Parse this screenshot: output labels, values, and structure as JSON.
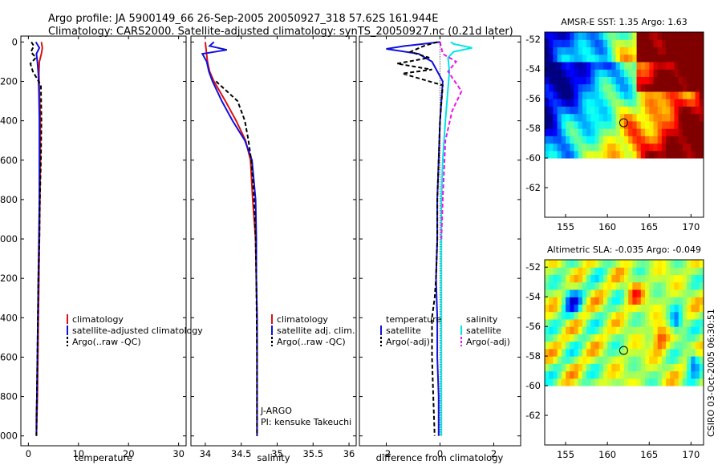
{
  "figure": {
    "title_line1": "Argo profile: JA 5900149_66 26-Sep-2005 20050927_318 57.62S 161.944E",
    "title_line2": "Climatology: CARS2000. Satellite-adjusted climatology: synTS_20050927.nc (0.21d later)",
    "side_stamp": "CSIRO 03-Oct-2005 06:30:51",
    "platform_note": "J-ARGO",
    "pi_note": "PI: kensuke Takeuchi"
  },
  "chart_data": [
    {
      "type": "line",
      "id": "temperature",
      "xlabel": "temperature",
      "xlim": [
        -1.5,
        31.5
      ],
      "ylim": [
        2050,
        -30
      ],
      "y_reversed": true,
      "xticks": [
        0,
        10,
        20,
        30
      ],
      "yticks": [
        0,
        200,
        400,
        600,
        800,
        1000,
        1200,
        1400,
        1600,
        1800,
        2000
      ],
      "legend": {
        "position": "lower-right",
        "entries": [
          {
            "label": "climatology",
            "color": "#dd1111"
          },
          {
            "label": "satellite-adjusted climatology",
            "color": "#1010dd"
          },
          {
            "label": "Argo(..raw -QC)",
            "color": "#000000"
          }
        ]
      },
      "series": [
        {
          "name": "climatology",
          "color": "#dd1111",
          "style": "solid",
          "x": [
            2.6,
            2.8,
            2.6,
            2.2,
            2.1,
            2.2,
            2.4,
            2.4,
            2.3,
            2.2,
            2.1,
            2.0,
            1.9,
            1.8,
            1.7,
            1.6
          ],
          "y": [
            0,
            30,
            60,
            100,
            160,
            250,
            400,
            600,
            800,
            1000,
            1200,
            1400,
            1600,
            1800,
            1900,
            2000
          ]
        },
        {
          "name": "satellite-adjusted climatology",
          "color": "#1010dd",
          "style": "solid",
          "x": [
            1.5,
            2.2,
            1.6,
            1.8,
            2.0,
            2.1,
            2.2,
            2.2,
            2.2,
            2.1,
            2.0,
            1.9,
            1.8,
            1.7,
            1.6,
            1.6
          ],
          "y": [
            0,
            30,
            60,
            100,
            160,
            250,
            400,
            600,
            800,
            1000,
            1200,
            1400,
            1600,
            1800,
            1900,
            2000
          ]
        },
        {
          "name": "Argo(..raw -QC)",
          "color": "#000000",
          "style": "dashed",
          "x": [
            0.6,
            1.1,
            0.5,
            1.5,
            0.4,
            0.9,
            2.5,
            2.6,
            2.5,
            2.3,
            2.2,
            2.0,
            1.9,
            1.8,
            1.7,
            1.6
          ],
          "y": [
            0,
            20,
            50,
            80,
            110,
            150,
            220,
            400,
            600,
            800,
            1000,
            1200,
            1400,
            1600,
            1800,
            2000
          ]
        }
      ]
    },
    {
      "type": "line",
      "id": "salinity",
      "xlabel": "salinity",
      "xlim": [
        33.8,
        36.1
      ],
      "ylim": [
        2050,
        -30
      ],
      "y_reversed": true,
      "xticks": [
        34,
        34.5,
        35,
        35.5,
        36
      ],
      "legend": {
        "position": "lower-right",
        "entries": [
          {
            "label": "climatology",
            "color": "#dd1111"
          },
          {
            "label": "satellite adj. clim.",
            "color": "#1010dd"
          },
          {
            "label": "Argo(..raw -QC)",
            "color": "#000000"
          }
        ]
      },
      "series": [
        {
          "name": "climatology",
          "color": "#dd1111",
          "style": "solid",
          "x": [
            34.0,
            34.03,
            34.06,
            34.12,
            34.28,
            34.43,
            34.56,
            34.63,
            34.66,
            34.7,
            34.71,
            34.72,
            34.72,
            34.72,
            34.72
          ],
          "y": [
            0,
            100,
            150,
            200,
            300,
            400,
            500,
            600,
            800,
            1000,
            1200,
            1400,
            1600,
            1800,
            2000
          ]
        },
        {
          "name": "satellite adj. clim.",
          "color": "#1010dd",
          "style": "solid",
          "x": [
            34.12,
            34.06,
            34.3,
            33.96,
            34.02,
            34.05,
            34.1,
            34.23,
            34.38,
            34.55,
            34.65,
            34.7,
            34.71,
            34.71,
            34.72,
            34.72,
            34.72
          ],
          "y": [
            0,
            20,
            40,
            60,
            100,
            150,
            200,
            300,
            400,
            500,
            600,
            800,
            1000,
            1200,
            1400,
            1800,
            2000
          ]
        },
        {
          "name": "Argo(..raw -QC)",
          "color": "#000000",
          "style": "dashed",
          "x": [
            34.15,
            34.3,
            34.45,
            34.55,
            34.6,
            34.64,
            34.68,
            34.7,
            34.71,
            34.72,
            34.72
          ],
          "y": [
            200,
            250,
            300,
            400,
            500,
            600,
            800,
            1000,
            1200,
            1600,
            2000
          ]
        }
      ]
    },
    {
      "type": "line",
      "id": "difference",
      "xlabel": "difference from climatology",
      "xlim": [
        -3,
        3
      ],
      "ylim": [
        2050,
        -30
      ],
      "y_reversed": true,
      "xticks": [
        -2,
        0,
        2
      ],
      "legend": {
        "position": "lower-center",
        "entries": [
          {
            "label": "temperature",
            "color": null,
            "group": "header"
          },
          {
            "label": "satellite",
            "color": "#1010dd"
          },
          {
            "label": "Argo(-adj)",
            "color": "#000000"
          },
          {
            "label": "salinity",
            "color": null,
            "group": "header"
          },
          {
            "label": "satellite",
            "color": "#00e5e5"
          },
          {
            "label": "Argo(-adj)",
            "color": "#ee11ee"
          }
        ]
      },
      "series": [
        {
          "name": "temperature satellite",
          "color": "#1010dd",
          "style": "solid",
          "x": [
            0,
            -1.3,
            -2.0,
            -0.8,
            -0.3,
            0.1,
            0.0,
            -0.05,
            -0.1,
            -0.1,
            -0.15,
            -0.1,
            -0.1,
            -0.05,
            -0.05
          ],
          "y": [
            0,
            20,
            35,
            60,
            100,
            200,
            400,
            600,
            800,
            1000,
            1200,
            1400,
            1600,
            1800,
            2000
          ]
        },
        {
          "name": "temperature Argo(-adj)",
          "color": "#000000",
          "style": "dashed",
          "x": [
            -0.1,
            -0.6,
            -1.1,
            -0.4,
            -1.6,
            -0.3,
            -1.4,
            0.1,
            0.0,
            -0.05,
            -0.1,
            -0.1,
            -0.15,
            -0.2,
            -0.3,
            -0.3,
            -0.25,
            -0.2
          ],
          "y": [
            0,
            20,
            50,
            80,
            110,
            140,
            160,
            220,
            400,
            600,
            800,
            1000,
            1200,
            1300,
            1400,
            1600,
            1800,
            2000
          ]
        },
        {
          "name": "salinity satellite",
          "color": "#00e5e5",
          "style": "solid",
          "x": [
            0.4,
            0.5,
            1.2,
            0.5,
            0.3,
            0.35,
            0.2,
            0.1,
            0.05,
            0.05,
            0.05,
            0.05,
            0.05
          ],
          "y": [
            0,
            10,
            30,
            50,
            80,
            150,
            400,
            600,
            800,
            1000,
            1400,
            1800,
            2000
          ]
        },
        {
          "name": "salinity Argo(-adj)",
          "color": "#ee11ee",
          "style": "dashed",
          "x": [
            0,
            0.1,
            0.6,
            0.3,
            0.55,
            0.8,
            0.45,
            0.2,
            0.1,
            0.05
          ],
          "y": [
            0,
            60,
            100,
            150,
            200,
            250,
            350,
            500,
            800,
            1000
          ]
        },
        {
          "name": "zero line",
          "color": "#000000",
          "style": "dotted",
          "x": [
            0,
            0
          ],
          "y": [
            0,
            2000
          ]
        }
      ]
    },
    {
      "type": "heatmap",
      "id": "sst_map",
      "title": "AMSR-E SST: 1.35 Argo: 1.63",
      "xlim": [
        152.5,
        171.5
      ],
      "ylim": [
        -64,
        -51.5
      ],
      "xticks": [
        155,
        160,
        165,
        170
      ],
      "yticks": [
        -52,
        -54,
        -56,
        -58,
        -60,
        -62
      ],
      "data_southern_limit": -60,
      "float_position": {
        "lon": 161.944,
        "lat": -57.62
      }
    },
    {
      "type": "heatmap",
      "id": "sla_map",
      "title": "Altimetric SLA: -0.035 Argo: -0.049",
      "xlim": [
        152.5,
        171.5
      ],
      "ylim": [
        -64,
        -51.5
      ],
      "xticks": [
        155,
        160,
        165,
        170
      ],
      "yticks": [
        -52,
        -54,
        -56,
        -58,
        -60,
        -62
      ],
      "data_southern_limit": -60,
      "float_position": {
        "lon": 161.944,
        "lat": -57.62
      }
    }
  ]
}
